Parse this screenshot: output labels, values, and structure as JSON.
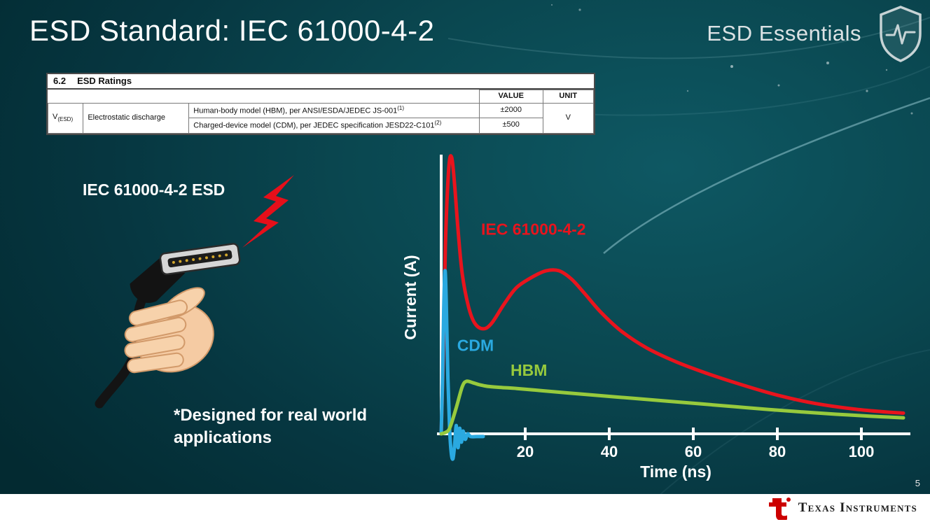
{
  "slide": {
    "title": "ESD Standard: IEC 61000-4-2",
    "brand": "ESD Essentials",
    "page_number": "5"
  },
  "colors": {
    "background": "#0a4750",
    "iec_red": "#e8141d",
    "cdm_blue": "#2aa9e0",
    "hbm_green": "#97ca3d",
    "ti_red": "#cc0000",
    "footer_bg": "#ffffff"
  },
  "icons": {
    "shield": "shield-with-heartbeat",
    "lightning": "red-lightning-bolt",
    "hand": "hand-holding-hdmi-cable",
    "ti_logo": "texas-instruments-logo"
  },
  "ratings_table": {
    "section_number": "6.2",
    "section_title": "ESD Ratings",
    "value_header": "VALUE",
    "unit_header": "UNIT",
    "param_symbol": "V",
    "param_subscript": "(ESD)",
    "param_name": "Electrostatic discharge",
    "rows": [
      {
        "description": "Human-body model (HBM), per ANSI/ESDA/JEDEC JS-001",
        "superscript": "(1)",
        "value": "±2000"
      },
      {
        "description": "Charged-device model (CDM), per JEDEC specification JESD22-C101",
        "superscript": "(2)",
        "value": "±500"
      }
    ],
    "unit": "V"
  },
  "left_panel": {
    "esd_label": "IEC 61000-4-2 ESD",
    "note_line1": "*Designed for real world",
    "note_line2": "applications"
  },
  "footer": {
    "brand": "Texas Instruments"
  },
  "chart_data": {
    "type": "line",
    "title": "",
    "xlabel": "Time (ns)",
    "ylabel": "Current (A)",
    "x_range": [
      0,
      112
    ],
    "y_range": [
      -12,
      105
    ],
    "xticks": [
      20,
      40,
      60,
      80,
      100
    ],
    "grid": false,
    "legend_position": "inline-labels",
    "axis_color": "#ffffff",
    "y_units": "relative amplitude, peak = 100",
    "series": [
      {
        "name": "IEC 61000-4-2",
        "color": "#e8141d",
        "label_pos": [
          9.5,
          72
        ],
        "points": [
          [
            0,
            0
          ],
          [
            0.5,
            28
          ],
          [
            1,
            68
          ],
          [
            1.8,
            96
          ],
          [
            2.5,
            100
          ],
          [
            3.2,
            90
          ],
          [
            4,
            74
          ],
          [
            5,
            58
          ],
          [
            6.5,
            46
          ],
          [
            8,
            40
          ],
          [
            10,
            38
          ],
          [
            12,
            40
          ],
          [
            15,
            47
          ],
          [
            18,
            53
          ],
          [
            22,
            57
          ],
          [
            25,
            59
          ],
          [
            28,
            59
          ],
          [
            31,
            56
          ],
          [
            34,
            51
          ],
          [
            38,
            44
          ],
          [
            43,
            37
          ],
          [
            49,
            31
          ],
          [
            56,
            26
          ],
          [
            63,
            22
          ],
          [
            71,
            18
          ],
          [
            80,
            14
          ],
          [
            89,
            11
          ],
          [
            98,
            9
          ],
          [
            105,
            8
          ],
          [
            110,
            7.5
          ]
        ]
      },
      {
        "name": "CDM",
        "color": "#2aa9e0",
        "label_pos": [
          3.8,
          30
        ],
        "points": [
          [
            0,
            0
          ],
          [
            0.3,
            18
          ],
          [
            0.6,
            45
          ],
          [
            0.9,
            59
          ],
          [
            1.2,
            48
          ],
          [
            1.6,
            20
          ],
          [
            2,
            2
          ],
          [
            2.4,
            -7
          ],
          [
            2.8,
            -9
          ],
          [
            3.2,
            -4
          ],
          [
            3.6,
            3
          ],
          [
            4,
            -5
          ],
          [
            4.4,
            2
          ],
          [
            4.8,
            -3
          ],
          [
            5.2,
            1
          ],
          [
            5.7,
            -2
          ],
          [
            6.3,
            0
          ],
          [
            7,
            -1
          ],
          [
            8.5,
            -1
          ],
          [
            10,
            -1
          ]
        ]
      },
      {
        "name": "HBM",
        "color": "#97ca3d",
        "label_pos": [
          16.5,
          21
        ],
        "points": [
          [
            0,
            0
          ],
          [
            1,
            0.5
          ],
          [
            2,
            2
          ],
          [
            3.5,
            9
          ],
          [
            5,
            17
          ],
          [
            6,
            19
          ],
          [
            7.5,
            18.5
          ],
          [
            9,
            17.8
          ],
          [
            11,
            17.2
          ],
          [
            14,
            16.8
          ],
          [
            18,
            16.4
          ],
          [
            24,
            15.6
          ],
          [
            30,
            14.8
          ],
          [
            38,
            13.8
          ],
          [
            46,
            12.8
          ],
          [
            54,
            11.8
          ],
          [
            62,
            10.8
          ],
          [
            70,
            9.8
          ],
          [
            78,
            8.8
          ],
          [
            86,
            7.9
          ],
          [
            94,
            7.1
          ],
          [
            102,
            6.4
          ],
          [
            110,
            5.8
          ]
        ]
      }
    ]
  }
}
